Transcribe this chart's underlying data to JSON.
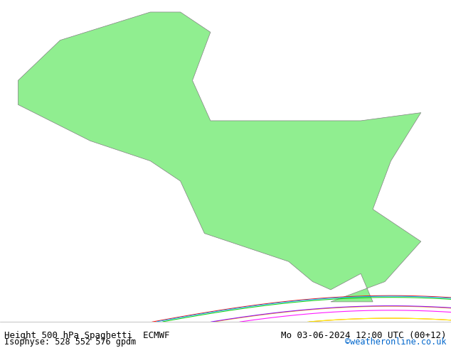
{
  "title_left": "Height 500 hPa Spaghetti  ECMWF",
  "title_right": "Mo 03-06-2024 12:00 UTC (00+12)",
  "subtitle_left": "Isophyse: 528 552 576 gpdm",
  "subtitle_right": "©weatheronline.co.uk",
  "subtitle_right_color": "#0066cc",
  "background_ocean": "#d3d3d3",
  "background_land": "#90ee90",
  "border_color": "#808080",
  "text_color": "#000000",
  "bottom_bar_color": "#f0f0f0",
  "figure_width": 6.34,
  "figure_height": 4.9,
  "dpi": 100,
  "map_extent": [
    -20,
    55,
    -40,
    40
  ],
  "contour_colors": [
    "#ff0000",
    "#00aaff",
    "#00cc00",
    "#ff00ff",
    "#ffaa00",
    "#00ffff",
    "#8800ff",
    "#ff6600",
    "#ffff00",
    "#00ff88"
  ],
  "title_fontsize": 9,
  "subtitle_fontsize": 8.5
}
